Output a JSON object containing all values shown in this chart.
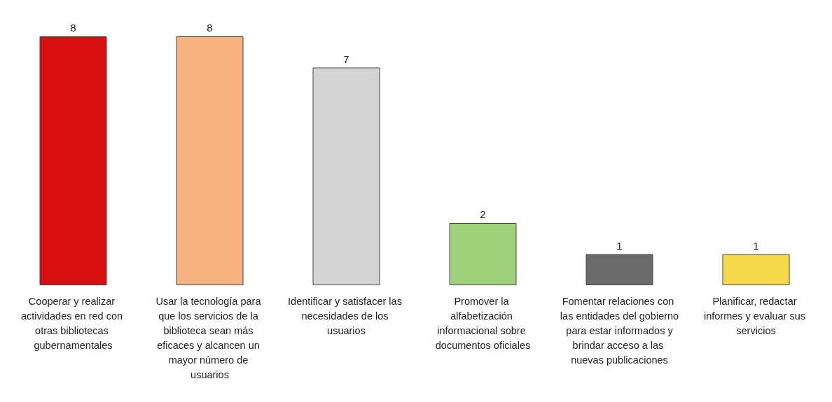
{
  "chart_data": {
    "type": "bar",
    "categories": [
      "Cooperar y realizar actividades en red con otras bibliotecas gubernamentales",
      "Usar la tecnología para que los servicios de la biblioteca sean más eficaces y alcancen un mayor número de usuarios",
      "Identificar y satisfacer las necesidades de los usuarios",
      "Promover la alfabetización informacional sobre documentos oficiales",
      "Fomentar relaciones con las entidades del gobierno para estar informados y brindar acceso a las nuevas publicaciones",
      "Planificar, redactar informes y evaluar sus servicios"
    ],
    "values": [
      8,
      8,
      7,
      2,
      1,
      1
    ],
    "colors": [
      "#d90f0f",
      "#f7b27f",
      "#d4d4d4",
      "#9fd27a",
      "#6b6b6b",
      "#f5d94a"
    ],
    "ylim": [
      0,
      8
    ],
    "tick_labels": "x",
    "data_labels": true
  }
}
